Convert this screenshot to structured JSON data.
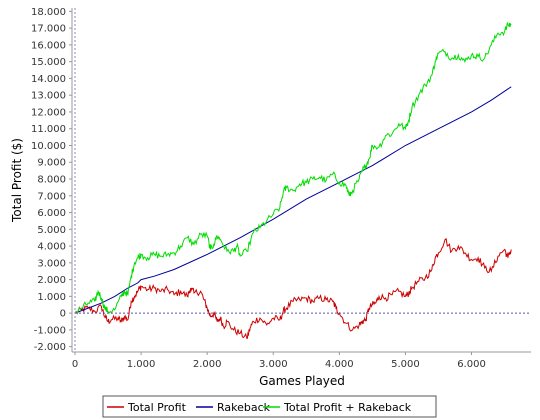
{
  "chart_data": {
    "type": "line",
    "xlabel": "Games Played",
    "ylabel": "Total Profit ($)",
    "xlim": [
      0,
      6900
    ],
    "ylim": [
      -2200,
      18200
    ],
    "x_ticks": [
      {
        "value": 0,
        "label": "0"
      },
      {
        "value": 1000,
        "label": "1.000"
      },
      {
        "value": 2000,
        "label": "2.000"
      },
      {
        "value": 3000,
        "label": "3.000"
      },
      {
        "value": 4000,
        "label": "4.000"
      },
      {
        "value": 5000,
        "label": "5.000"
      },
      {
        "value": 6000,
        "label": "6.000"
      }
    ],
    "y_ticks": [
      {
        "value": -2000,
        "label": "-2.000"
      },
      {
        "value": -1000,
        "label": "-1.000"
      },
      {
        "value": 0,
        "label": "0"
      },
      {
        "value": 1000,
        "label": "1.000"
      },
      {
        "value": 2000,
        "label": "2.000"
      },
      {
        "value": 3000,
        "label": "3.000"
      },
      {
        "value": 4000,
        "label": "4.000"
      },
      {
        "value": 5000,
        "label": "5.000"
      },
      {
        "value": 6000,
        "label": "6.000"
      },
      {
        "value": 7000,
        "label": "7.000"
      },
      {
        "value": 8000,
        "label": "8.000"
      },
      {
        "value": 9000,
        "label": "9.000"
      },
      {
        "value": 10000,
        "label": "10.000"
      },
      {
        "value": 11000,
        "label": "11.000"
      },
      {
        "value": 12000,
        "label": "12.000"
      },
      {
        "value": 13000,
        "label": "13.000"
      },
      {
        "value": 14000,
        "label": "14.000"
      },
      {
        "value": 15000,
        "label": "15.000"
      },
      {
        "value": 16000,
        "label": "16.000"
      },
      {
        "value": 17000,
        "label": "17.000"
      },
      {
        "value": 18000,
        "label": "18.000"
      }
    ],
    "grid": false,
    "zero_line": true,
    "legend_position": "bottom",
    "series": [
      {
        "name": "Total Profit",
        "color": "#cc0000",
        "points": [
          [
            0,
            0
          ],
          [
            100,
            200
          ],
          [
            200,
            300
          ],
          [
            300,
            100
          ],
          [
            400,
            400
          ],
          [
            450,
            -200
          ],
          [
            500,
            -500
          ],
          [
            550,
            -400
          ],
          [
            650,
            -300
          ],
          [
            700,
            -500
          ],
          [
            750,
            -200
          ],
          [
            800,
            -400
          ],
          [
            850,
            700
          ],
          [
            900,
            1000
          ],
          [
            950,
            1300
          ],
          [
            1000,
            1600
          ],
          [
            1100,
            1400
          ],
          [
            1200,
            1500
          ],
          [
            1300,
            1300
          ],
          [
            1400,
            1400
          ],
          [
            1500,
            1100
          ],
          [
            1600,
            1300
          ],
          [
            1700,
            1000
          ],
          [
            1750,
            1500
          ],
          [
            1800,
            1200
          ],
          [
            1900,
            1300
          ],
          [
            1950,
            800
          ],
          [
            2000,
            300
          ],
          [
            2050,
            -200
          ],
          [
            2100,
            0
          ],
          [
            2150,
            -500
          ],
          [
            2200,
            -300
          ],
          [
            2250,
            -800
          ],
          [
            2300,
            -500
          ],
          [
            2400,
            -1000
          ],
          [
            2500,
            -1200
          ],
          [
            2600,
            -1500
          ],
          [
            2650,
            -900
          ],
          [
            2700,
            -500
          ],
          [
            2800,
            -300
          ],
          [
            2900,
            -700
          ],
          [
            3000,
            -300
          ],
          [
            3100,
            -400
          ],
          [
            3150,
            100
          ],
          [
            3200,
            300
          ],
          [
            3300,
            700
          ],
          [
            3400,
            800
          ],
          [
            3500,
            900
          ],
          [
            3600,
            700
          ],
          [
            3700,
            900
          ],
          [
            3800,
            800
          ],
          [
            3900,
            700
          ],
          [
            3950,
            300
          ],
          [
            4000,
            0
          ],
          [
            4100,
            -600
          ],
          [
            4200,
            -1000
          ],
          [
            4300,
            -700
          ],
          [
            4350,
            -500
          ],
          [
            4400,
            -400
          ],
          [
            4450,
            300
          ],
          [
            4500,
            500
          ],
          [
            4550,
            600
          ],
          [
            4600,
            1000
          ],
          [
            4700,
            900
          ],
          [
            4800,
            1100
          ],
          [
            4900,
            1300
          ],
          [
            5000,
            1000
          ],
          [
            5050,
            1200
          ],
          [
            5100,
            1500
          ],
          [
            5200,
            1900
          ],
          [
            5300,
            2100
          ],
          [
            5400,
            2600
          ],
          [
            5450,
            3300
          ],
          [
            5500,
            3600
          ],
          [
            5600,
            4400
          ],
          [
            5700,
            3700
          ],
          [
            5800,
            4000
          ],
          [
            5900,
            3600
          ],
          [
            6000,
            3200
          ],
          [
            6100,
            3300
          ],
          [
            6200,
            2700
          ],
          [
            6300,
            2500
          ],
          [
            6400,
            3400
          ],
          [
            6500,
            3800
          ],
          [
            6550,
            3300
          ],
          [
            6600,
            3800
          ]
        ]
      },
      {
        "name": "Rakeback",
        "color": "#000099",
        "points": [
          [
            0,
            0
          ],
          [
            200,
            300
          ],
          [
            400,
            600
          ],
          [
            600,
            1000
          ],
          [
            800,
            1500
          ],
          [
            950,
            1800
          ],
          [
            1000,
            2000
          ],
          [
            1200,
            2200
          ],
          [
            1500,
            2600
          ],
          [
            2000,
            3500
          ],
          [
            2500,
            4500
          ],
          [
            3000,
            5600
          ],
          [
            3500,
            6800
          ],
          [
            4000,
            7800
          ],
          [
            4500,
            8800
          ],
          [
            5000,
            10000
          ],
          [
            5500,
            11000
          ],
          [
            6000,
            12000
          ],
          [
            6300,
            12700
          ],
          [
            6600,
            13500
          ]
        ]
      },
      {
        "name": "Total Profit + Rakeback",
        "color": "#00dd00",
        "points": [
          [
            0,
            0
          ],
          [
            100,
            300
          ],
          [
            200,
            600
          ],
          [
            300,
            700
          ],
          [
            350,
            1300
          ],
          [
            400,
            900
          ],
          [
            450,
            300
          ],
          [
            500,
            100
          ],
          [
            600,
            200
          ],
          [
            700,
            1000
          ],
          [
            750,
            1300
          ],
          [
            800,
            1100
          ],
          [
            850,
            2200
          ],
          [
            900,
            3000
          ],
          [
            950,
            3300
          ],
          [
            1000,
            3500
          ],
          [
            1100,
            3300
          ],
          [
            1200,
            3500
          ],
          [
            1300,
            3400
          ],
          [
            1400,
            3500
          ],
          [
            1500,
            3600
          ],
          [
            1600,
            4000
          ],
          [
            1700,
            4500
          ],
          [
            1800,
            4100
          ],
          [
            1900,
            4700
          ],
          [
            2000,
            4600
          ],
          [
            2050,
            3800
          ],
          [
            2100,
            4100
          ],
          [
            2150,
            4600
          ],
          [
            2200,
            4400
          ],
          [
            2300,
            3700
          ],
          [
            2400,
            3700
          ],
          [
            2450,
            4000
          ],
          [
            2500,
            3400
          ],
          [
            2600,
            3700
          ],
          [
            2700,
            4800
          ],
          [
            2800,
            5100
          ],
          [
            2900,
            5500
          ],
          [
            3000,
            5900
          ],
          [
            3100,
            6300
          ],
          [
            3150,
            7200
          ],
          [
            3200,
            7500
          ],
          [
            3300,
            7300
          ],
          [
            3400,
            7700
          ],
          [
            3500,
            7800
          ],
          [
            3600,
            8000
          ],
          [
            3700,
            8100
          ],
          [
            3800,
            7900
          ],
          [
            3900,
            8300
          ],
          [
            4000,
            7800
          ],
          [
            4100,
            7600
          ],
          [
            4150,
            7000
          ],
          [
            4200,
            7300
          ],
          [
            4300,
            8000
          ],
          [
            4350,
            8500
          ],
          [
            4400,
            8800
          ],
          [
            4450,
            9200
          ],
          [
            4500,
            10000
          ],
          [
            4600,
            9900
          ],
          [
            4700,
            10600
          ],
          [
            4800,
            10700
          ],
          [
            4900,
            11300
          ],
          [
            5000,
            11000
          ],
          [
            5050,
            11500
          ],
          [
            5100,
            12300
          ],
          [
            5200,
            13000
          ],
          [
            5300,
            13600
          ],
          [
            5400,
            14200
          ],
          [
            5450,
            15000
          ],
          [
            5500,
            15500
          ],
          [
            5600,
            15600
          ],
          [
            5700,
            15200
          ],
          [
            5800,
            15400
          ],
          [
            5900,
            15000
          ],
          [
            6000,
            15400
          ],
          [
            6100,
            15300
          ],
          [
            6200,
            15200
          ],
          [
            6300,
            16000
          ],
          [
            6400,
            16700
          ],
          [
            6500,
            16800
          ],
          [
            6550,
            17200
          ],
          [
            6600,
            17200
          ]
        ]
      }
    ]
  }
}
